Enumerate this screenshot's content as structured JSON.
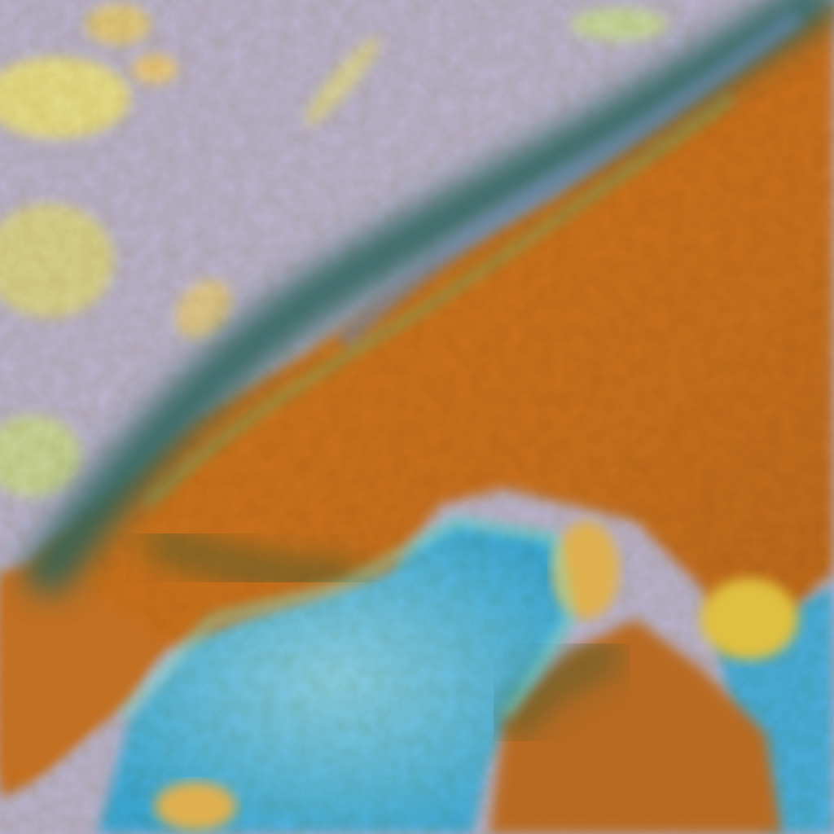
{
  "image": {
    "kind": "false-color satellite cloud imagery",
    "colors": {
      "clear_sky_lavender": "#b8b4d0",
      "high_cloud_orange": "#c8741c",
      "cloud_band_teal": "#2e6a60",
      "low_cloud_yellow": "#e8d888",
      "ocean_cyan": "#4ab4e0",
      "cloud_edge_green": "#5ad8a0"
    }
  }
}
